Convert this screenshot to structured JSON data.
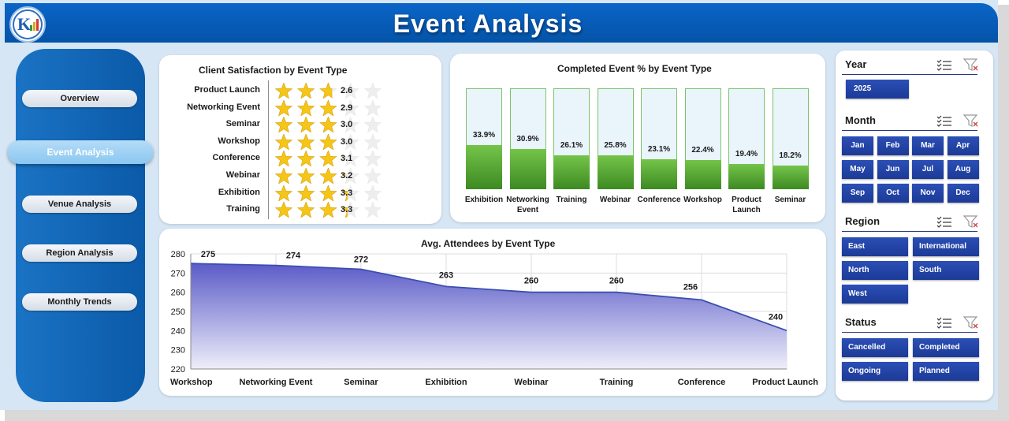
{
  "header": {
    "title": "Event  Analysis"
  },
  "nav": {
    "overview": "Overview",
    "event_analysis": "Event Analysis",
    "venue_analysis": "Venue Analysis",
    "region_analysis": "Region Analysis",
    "monthly_trends": "Monthly Trends"
  },
  "colors": {
    "accent": "#0a5aa8",
    "bar_fill": "#4f9a2c",
    "star": "#f5c518",
    "area": "#5b5bc8"
  },
  "chart_data": [
    {
      "type": "bar",
      "title": "Client Satisfaction by Event Type",
      "categories": [
        "Product Launch",
        "Networking Event",
        "Seminar",
        "Workshop",
        "Conference",
        "Webinar",
        "Exhibition",
        "Training"
      ],
      "values": [
        2.6,
        2.9,
        3.0,
        3.0,
        3.1,
        3.2,
        3.3,
        3.3
      ],
      "value_labels": [
        "2.6",
        "2.9",
        "3.0",
        "3.0",
        "3.1",
        "3.2",
        "3.3",
        "3.3"
      ],
      "max": 5
    },
    {
      "type": "bar",
      "title": "Completed Event % by Event Type",
      "categories": [
        "Exhibition",
        "Networking Event",
        "Training",
        "Webinar",
        "Conference",
        "Workshop",
        "Product Launch",
        "Seminar"
      ],
      "category_lines": [
        [
          "Exhibition"
        ],
        [
          "Networking",
          "Event"
        ],
        [
          "Training"
        ],
        [
          "Webinar"
        ],
        [
          "Conference"
        ],
        [
          "Workshop"
        ],
        [
          "Product",
          "Launch"
        ],
        [
          "Seminar"
        ]
      ],
      "values": [
        33.9,
        30.9,
        26.1,
        25.8,
        23.1,
        22.4,
        19.4,
        18.2
      ],
      "value_labels": [
        "33.9%",
        "30.9%",
        "26.1%",
        "25.8%",
        "23.1%",
        "22.4%",
        "19.4%",
        "18.2%"
      ],
      "ylim": [
        0,
        100
      ]
    },
    {
      "type": "area",
      "title": "Avg. Attendees by Event Type",
      "categories": [
        "Workshop",
        "Networking Event",
        "Seminar",
        "Exhibition",
        "Webinar",
        "Training",
        "Conference",
        "Product Launch"
      ],
      "values": [
        275,
        274,
        272,
        263,
        260,
        260,
        256,
        240
      ],
      "value_labels": [
        "275",
        "274",
        "272",
        "263",
        "260",
        "260",
        "256",
        "240"
      ],
      "ylim": [
        220,
        280
      ],
      "yticks": [
        "220",
        "230",
        "240",
        "250",
        "260",
        "270",
        "280"
      ],
      "grid": true
    }
  ],
  "slicers": {
    "year": {
      "title": "Year",
      "items": [
        "2025"
      ]
    },
    "month": {
      "title": "Month",
      "items": [
        "Jan",
        "Feb",
        "Mar",
        "Apr",
        "May",
        "Jun",
        "Jul",
        "Aug",
        "Sep",
        "Oct",
        "Nov",
        "Dec"
      ]
    },
    "region": {
      "title": "Region",
      "items": [
        "East",
        "International",
        "North",
        "South",
        "West"
      ]
    },
    "status": {
      "title": "Status",
      "items": [
        "Cancelled",
        "Completed",
        "Ongoing",
        "Planned"
      ]
    },
    "icons": [
      "multi-select-icon",
      "clear-filter-icon"
    ]
  }
}
